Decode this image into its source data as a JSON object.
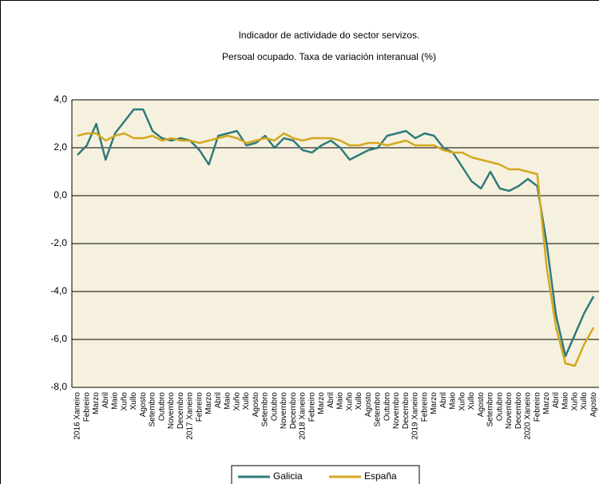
{
  "chart_data": {
    "type": "line",
    "title": "Indicador de actividade do sector servizos.",
    "subtitle": "Persoal ocupado. Taxa de variación interanual (%)",
    "categories": [
      "2016 Xaneiro",
      "Febreiro",
      "Marzo",
      "Abril",
      "Maio",
      "Xuño",
      "Xullo",
      "Agosto",
      "Setembro",
      "Outubro",
      "Novembro",
      "Decembro",
      "2017 Xaneiro",
      "Febreiro",
      "Marzo",
      "Abril",
      "Maio",
      "Xuño",
      "Xullo",
      "Agosto",
      "Setembro",
      "Outubro",
      "Novembro",
      "Decembro",
      "2018 Xaneiro",
      "Febreiro",
      "Marzo",
      "Abril",
      "Maio",
      "Xuño",
      "Xullo",
      "Agosto",
      "Setembro",
      "Outubro",
      "Novembro",
      "Decembro",
      "2019 Xaneiro",
      "Febreiro",
      "Marzo",
      "Abril",
      "Maio",
      "Xuño",
      "Xullo",
      "Agosto",
      "Setembro",
      "Outubro",
      "Novembro",
      "Decembro",
      "2020 Xaneiro",
      "Febreiro",
      "Marzo",
      "Abril",
      "Maio",
      "Xuño",
      "Xullo",
      "Agosto"
    ],
    "series": [
      {
        "name": "Galicia",
        "color": "#2e7b7b",
        "values": [
          1.7,
          2.1,
          3.0,
          1.5,
          2.6,
          3.1,
          3.6,
          3.6,
          2.7,
          2.4,
          2.3,
          2.4,
          2.3,
          1.9,
          1.3,
          2.5,
          2.6,
          2.7,
          2.1,
          2.2,
          2.5,
          2.0,
          2.4,
          2.3,
          1.9,
          1.8,
          2.1,
          2.3,
          2.0,
          1.5,
          1.7,
          1.9,
          2.0,
          2.5,
          2.6,
          2.7,
          2.4,
          2.6,
          2.5,
          2.0,
          1.8,
          1.2,
          0.6,
          0.3,
          1.0,
          0.3,
          0.2,
          0.4,
          0.7,
          0.4,
          -2.0,
          -5.0,
          -6.7,
          -5.8,
          -4.9,
          -4.2
        ]
      },
      {
        "name": "España",
        "color": "#d4a820",
        "values": [
          2.5,
          2.6,
          2.6,
          2.3,
          2.5,
          2.6,
          2.4,
          2.4,
          2.5,
          2.3,
          2.4,
          2.3,
          2.3,
          2.2,
          2.3,
          2.4,
          2.5,
          2.4,
          2.2,
          2.3,
          2.4,
          2.3,
          2.6,
          2.4,
          2.3,
          2.4,
          2.4,
          2.4,
          2.3,
          2.1,
          2.1,
          2.2,
          2.2,
          2.1,
          2.2,
          2.3,
          2.1,
          2.1,
          2.1,
          1.9,
          1.8,
          1.8,
          1.6,
          1.5,
          1.4,
          1.3,
          1.1,
          1.1,
          1.0,
          0.9,
          -3.0,
          -5.5,
          -7.0,
          -7.1,
          -6.2,
          -5.5
        ]
      }
    ],
    "ylim": [
      -8,
      4
    ],
    "yticks": [
      {
        "value": 4,
        "label": "4,0"
      },
      {
        "value": 2,
        "label": "2,0"
      },
      {
        "value": 0,
        "label": "0,0"
      },
      {
        "value": -2,
        "label": "-2,0"
      },
      {
        "value": -4,
        "label": "-4,0"
      },
      {
        "value": -6,
        "label": "-6,0"
      },
      {
        "value": -8,
        "label": "-8,0"
      }
    ],
    "grid": true,
    "legend": "bottom"
  }
}
